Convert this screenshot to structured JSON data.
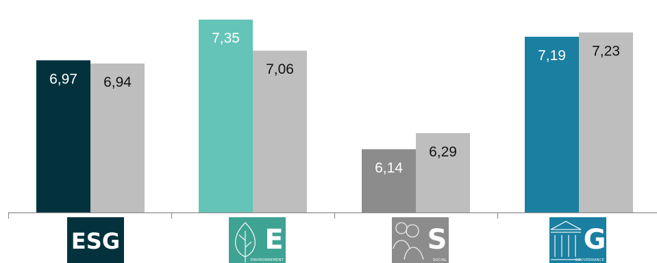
{
  "chart_data": {
    "type": "bar",
    "categories": [
      "ESG",
      "E",
      "S",
      "G"
    ],
    "category_subtitles": [
      "",
      "ENVIRONNEMENT",
      "SOCIAL",
      "GOUVERNANCE"
    ],
    "series": [
      {
        "values": [
          6.97,
          7.35,
          6.14,
          7.19
        ],
        "display": [
          "6,97",
          "7,35",
          "6,14",
          "7,19"
        ]
      },
      {
        "values": [
          6.94,
          7.06,
          6.29,
          7.23
        ],
        "display": [
          "6,94",
          "7,06",
          "6,29",
          "7,23"
        ]
      }
    ],
    "ylim": [
      5.55,
      7.45
    ],
    "grid": false,
    "legend": "none",
    "colors": {
      "primary": [
        "#03323d",
        "#64c4b8",
        "#8c8c8c",
        "#1a7fa0"
      ],
      "comparison": "#bebebe",
      "primary_label": "#ffffff",
      "comparison_label": "#111111",
      "axis": "#8c8c8c"
    },
    "tile_colors": [
      "#03323d",
      "#3fa394",
      "#8c8c8c",
      "#1a7fa0"
    ],
    "icons": [
      "",
      "leaf-icon",
      "people-icon",
      "columns-icon"
    ]
  }
}
